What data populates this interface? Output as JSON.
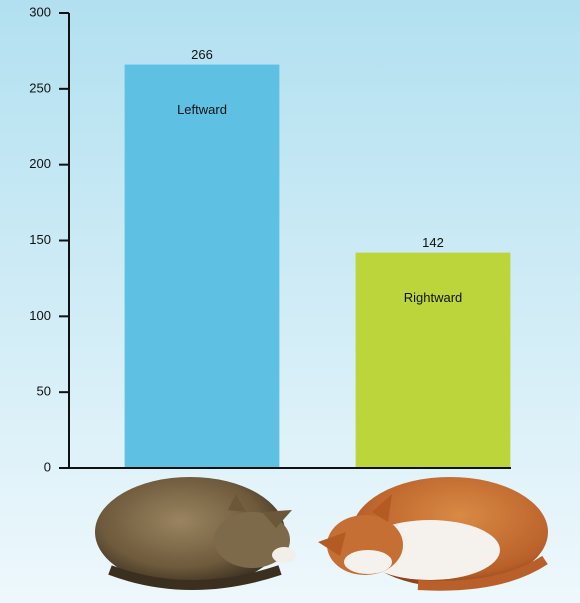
{
  "chart_data": {
    "type": "bar",
    "categories": [
      "Leftward",
      "Rightward"
    ],
    "values": [
      266,
      142
    ],
    "colors": [
      "#5ec1e3",
      "#bcd53a"
    ],
    "ylim": [
      0,
      300
    ],
    "yticks": [
      0,
      50,
      100,
      150,
      200,
      250,
      300
    ]
  }
}
